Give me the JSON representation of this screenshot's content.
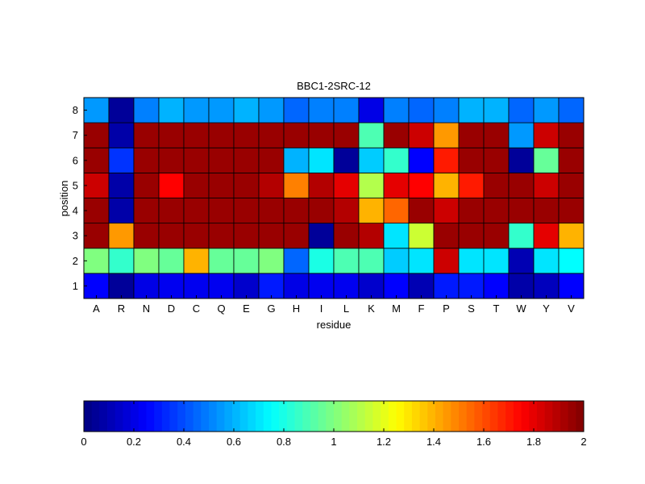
{
  "chart_data": {
    "type": "heatmap",
    "title": "BBC1-2SRC-12",
    "xlabel": "residue",
    "ylabel": "position",
    "x_categories": [
      "A",
      "R",
      "N",
      "D",
      "C",
      "Q",
      "E",
      "G",
      "H",
      "I",
      "L",
      "K",
      "M",
      "F",
      "P",
      "S",
      "T",
      "W",
      "Y",
      "V"
    ],
    "y_categories": [
      "1",
      "2",
      "3",
      "4",
      "5",
      "6",
      "7",
      "8"
    ],
    "values": [
      [
        0.25,
        0.05,
        0.2,
        0.22,
        0.22,
        0.22,
        0.15,
        0.3,
        0.2,
        0.22,
        0.22,
        0.15,
        0.25,
        0.1,
        0.3,
        0.3,
        0.25,
        0.08,
        0.12,
        0.25
      ],
      [
        1.0,
        0.85,
        1.0,
        0.95,
        1.4,
        0.95,
        0.95,
        1.0,
        0.45,
        0.8,
        0.9,
        0.9,
        0.65,
        0.7,
        1.85,
        0.7,
        0.7,
        0.1,
        0.7,
        0.75
      ],
      [
        1.95,
        1.45,
        1.95,
        1.95,
        1.95,
        1.95,
        1.95,
        1.95,
        1.95,
        0.05,
        1.95,
        1.9,
        0.7,
        1.15,
        1.95,
        1.95,
        1.95,
        0.85,
        1.8,
        1.4
      ],
      [
        1.95,
        0.08,
        1.95,
        1.95,
        1.95,
        1.95,
        1.95,
        1.95,
        1.95,
        1.95,
        1.9,
        1.4,
        1.55,
        1.95,
        1.85,
        1.95,
        1.95,
        1.95,
        1.95,
        1.95
      ],
      [
        1.85,
        0.08,
        1.95,
        1.75,
        1.95,
        1.95,
        1.95,
        1.9,
        1.5,
        1.9,
        1.8,
        1.1,
        1.8,
        1.75,
        1.4,
        1.7,
        1.95,
        1.95,
        1.85,
        1.95
      ],
      [
        1.95,
        0.35,
        1.95,
        1.95,
        1.95,
        1.95,
        1.95,
        1.95,
        0.6,
        0.7,
        0.05,
        0.65,
        0.85,
        0.25,
        1.7,
        1.95,
        1.95,
        0.05,
        0.95,
        1.95
      ],
      [
        1.95,
        0.08,
        1.95,
        1.95,
        1.95,
        1.95,
        1.95,
        1.95,
        1.95,
        1.95,
        1.95,
        0.9,
        1.95,
        1.85,
        1.45,
        1.95,
        1.95,
        0.55,
        1.85,
        1.95
      ],
      [
        0.55,
        0.05,
        0.5,
        0.6,
        0.55,
        0.55,
        0.6,
        0.55,
        0.45,
        0.5,
        0.5,
        0.2,
        0.5,
        0.45,
        0.5,
        0.6,
        0.6,
        0.45,
        0.55,
        0.45
      ]
    ],
    "colormap": "jet",
    "colorbar": {
      "range": [
        0,
        2
      ],
      "ticks": [
        0,
        0.2,
        0.4,
        0.6,
        0.8,
        1,
        1.2,
        1.4,
        1.6,
        1.8,
        2
      ],
      "tick_labels": [
        "0",
        "0.2",
        "0.4",
        "0.6",
        "0.8",
        "1",
        "1.2",
        "1.4",
        "1.6",
        "1.8",
        "2"
      ],
      "orientation": "horizontal",
      "placement": "bottom"
    },
    "grid": false
  }
}
